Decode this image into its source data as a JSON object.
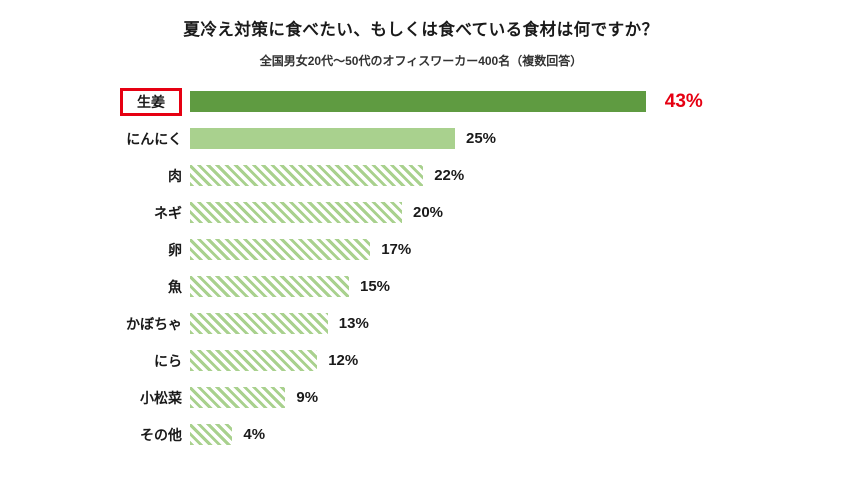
{
  "title": "夏冷え対策に食べたい、もしくは食べている食材は何ですか？",
  "subtitle": "全国男女20代～50代のオフィスワーカー400名（複数回答）",
  "colors": {
    "primary_bar": "#5f9b41",
    "secondary_bar": "#a9d18e",
    "hatch_stripe": "#a9d18e",
    "highlight_red": "#e60012",
    "text": "#1a1a1a"
  },
  "chart_data": {
    "type": "bar",
    "orientation": "horizontal",
    "categories": [
      "生姜",
      "にんにく",
      "肉",
      "ネギ",
      "卵",
      "魚",
      "かぼちゃ",
      "にら",
      "小松菜",
      "その他"
    ],
    "values": [
      43,
      25,
      22,
      20,
      17,
      15,
      13,
      12,
      9,
      4
    ],
    "value_labels": [
      "43%",
      "25%",
      "22%",
      "20%",
      "17%",
      "15%",
      "13%",
      "12%",
      "9%",
      "4%"
    ],
    "bar_styles": [
      "solid-dark",
      "solid-light",
      "hatched",
      "hatched",
      "hatched",
      "hatched",
      "hatched",
      "hatched",
      "hatched",
      "hatched"
    ],
    "highlight_index": 0,
    "xlim": [
      0,
      45
    ],
    "grid": false,
    "legend": false,
    "notes": "Top category label boxed in red; its value label shown in red."
  }
}
